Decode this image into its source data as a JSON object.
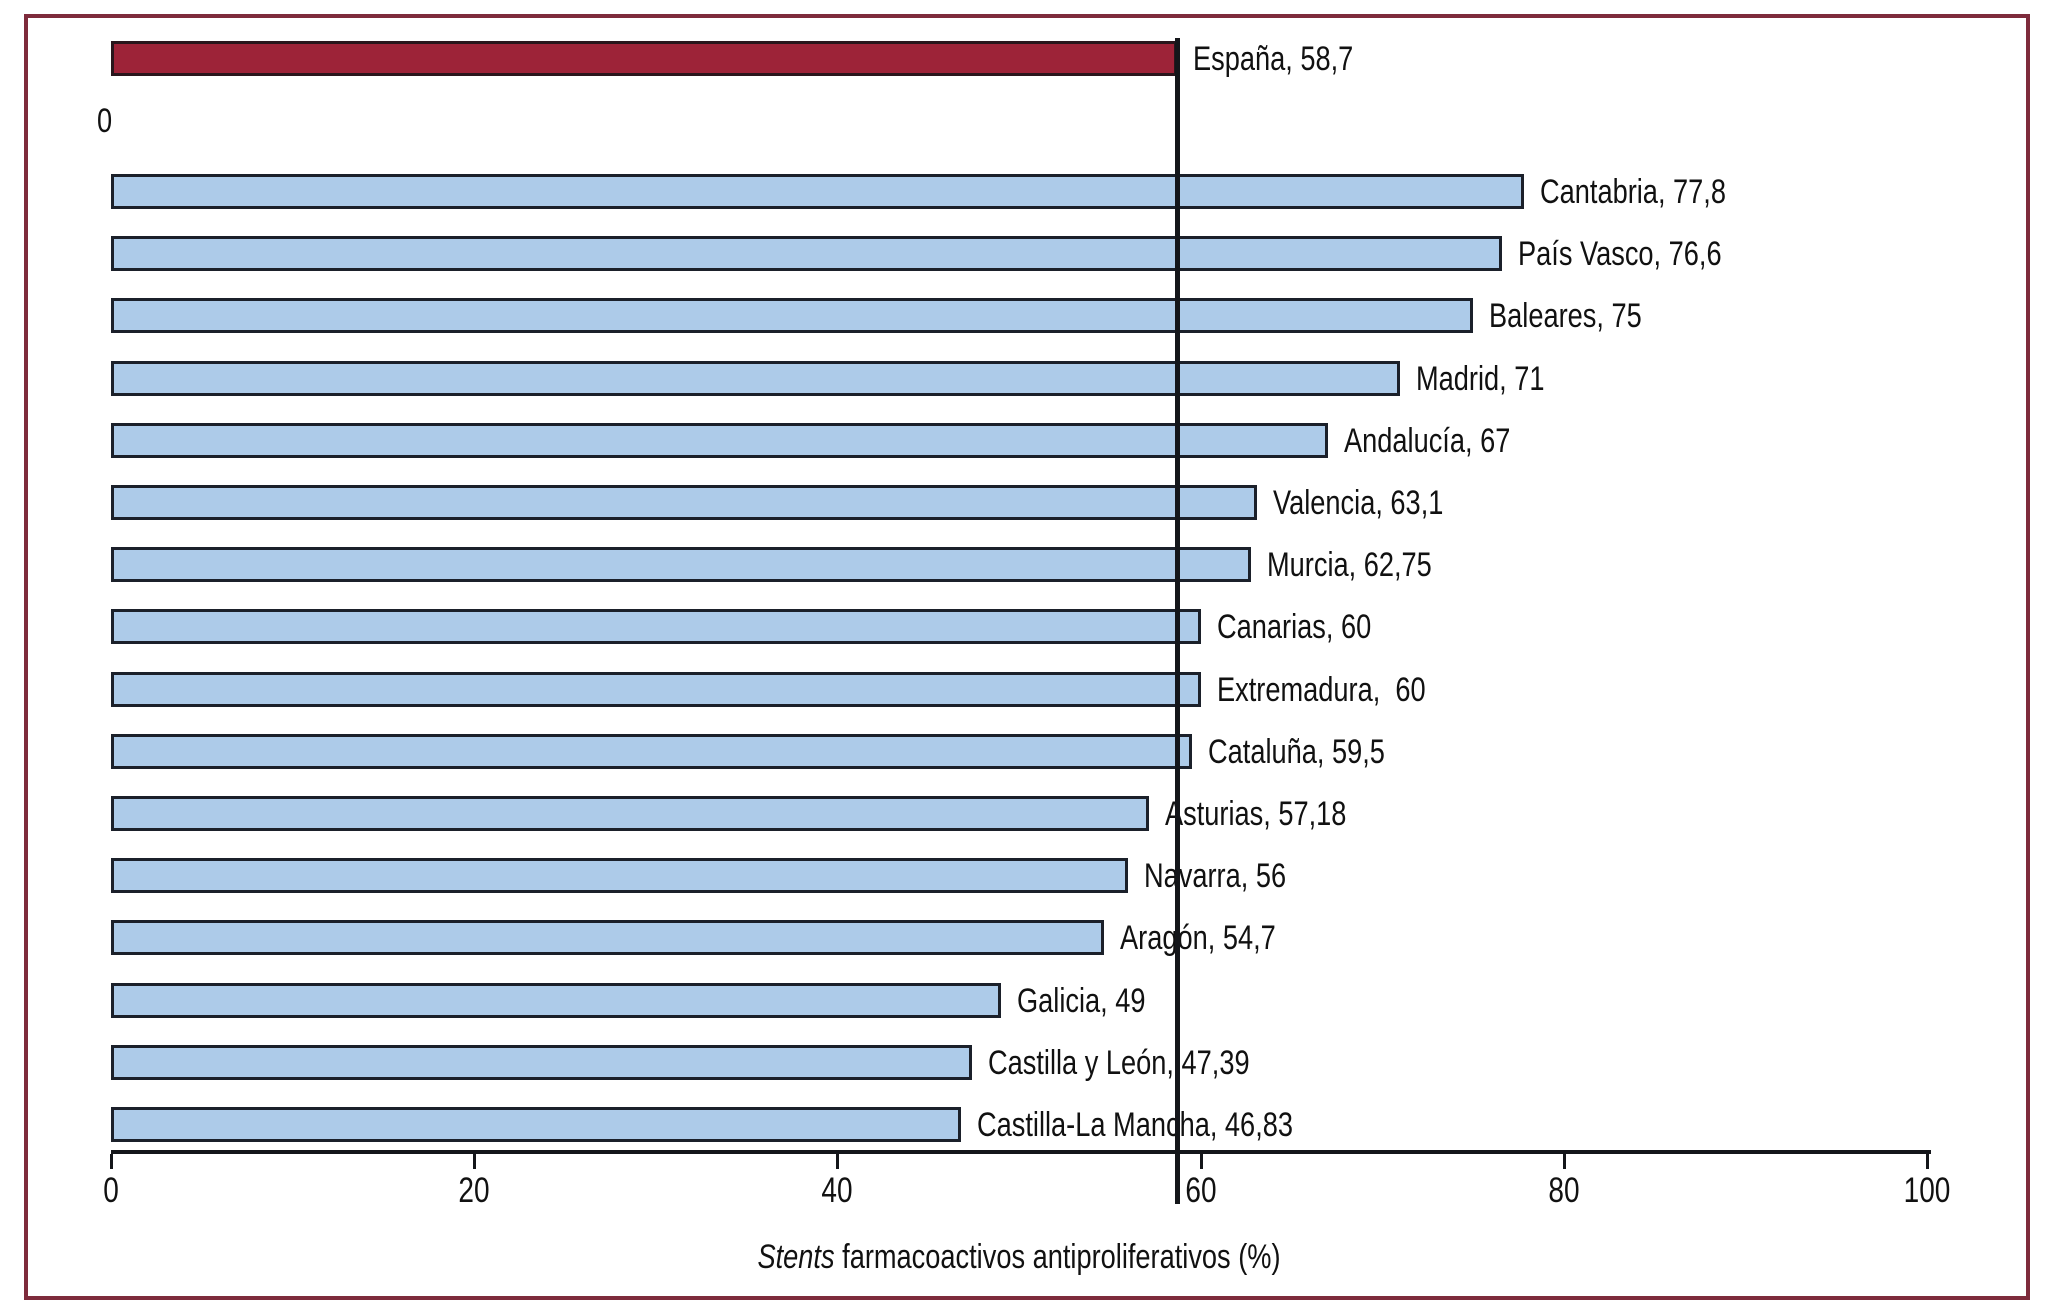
{
  "figure": {
    "frame_border_color": "#7e2b3c",
    "background_color": "#ffffff"
  },
  "chart_data": {
    "type": "bar",
    "orientation": "horizontal",
    "title": "",
    "xlabel_italic": "Stents",
    "xlabel_rest": " farmacoactivos antiproliferativos (%)",
    "xlim": [
      0,
      100
    ],
    "xticks": [
      0,
      20,
      40,
      60,
      80,
      100
    ],
    "xtick_labels": [
      "0",
      "20",
      "40",
      "60",
      "80",
      "100"
    ],
    "grid": false,
    "legend": false,
    "reference_line": {
      "value": 58.7
    },
    "colors": {
      "highlight_fill": "#9d2338",
      "highlight_border": "#2a161c",
      "bar_fill": "#adcbe9",
      "bar_border": "#1b202a",
      "axis_color": "#14161a",
      "text_color": "#111111"
    },
    "bars": [
      {
        "name": "España",
        "value": 58.7,
        "label": "España, 58,7",
        "role": "highlight"
      },
      {
        "name": "",
        "value": 0,
        "label": "0",
        "role": "zero"
      },
      {
        "name": "Cantabria",
        "value": 77.8,
        "label": "Cantabria, 77,8",
        "role": "region"
      },
      {
        "name": "País Vasco",
        "value": 76.6,
        "label": "País Vasco, 76,6",
        "role": "region"
      },
      {
        "name": "Baleares",
        "value": 75,
        "label": "Baleares, 75",
        "role": "region"
      },
      {
        "name": "Madrid",
        "value": 71,
        "label": "Madrid, 71",
        "role": "region"
      },
      {
        "name": "Andalucía",
        "value": 67,
        "label": "Andalucía, 67",
        "role": "region"
      },
      {
        "name": "Valencia",
        "value": 63.1,
        "label": "Valencia, 63,1",
        "role": "region"
      },
      {
        "name": "Murcia",
        "value": 62.75,
        "label": "Murcia, 62,75",
        "role": "region"
      },
      {
        "name": "Canarias",
        "value": 60,
        "label": "Canarias, 60",
        "role": "region"
      },
      {
        "name": "Extremadura",
        "value": 60,
        "label": "Extremadura,  60",
        "role": "region"
      },
      {
        "name": "Cataluña",
        "value": 59.5,
        "label": "Cataluña, 59,5",
        "role": "region"
      },
      {
        "name": "Asturias",
        "value": 57.18,
        "label": "Asturias, 57,18",
        "role": "region"
      },
      {
        "name": "Navarra",
        "value": 56,
        "label": "Navarra, 56",
        "role": "region"
      },
      {
        "name": "Aragón",
        "value": 54.7,
        "label": "Aragón, 54,7",
        "role": "region"
      },
      {
        "name": "Galicia",
        "value": 49,
        "label": "Galicia, 49",
        "role": "region"
      },
      {
        "name": "Castilla y León",
        "value": 47.39,
        "label": "Castilla y León, 47,39",
        "role": "region"
      },
      {
        "name": "Castilla-La Mancha",
        "value": 46.83,
        "label": "Castilla-La Mancha, 46,83",
        "role": "region"
      }
    ]
  }
}
